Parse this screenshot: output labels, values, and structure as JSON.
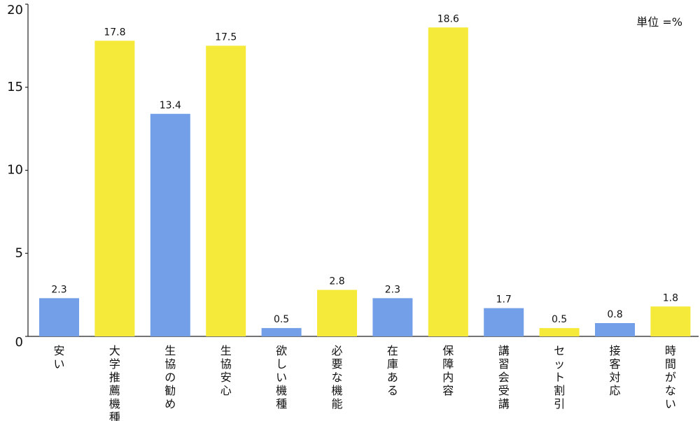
{
  "chart_data": {
    "type": "bar",
    "categories": [
      "安い",
      "大学推薦機種",
      "生協の勧め",
      "生協安心",
      "欲しい機種",
      "必要な機能",
      "在庫ある",
      "保障内容",
      "講習会受講",
      "セット割引",
      "接客対応",
      "時間がない"
    ],
    "values": [
      2.3,
      17.8,
      13.4,
      17.5,
      0.5,
      2.8,
      2.3,
      18.6,
      1.7,
      0.5,
      0.8,
      1.8
    ],
    "data_labels": [
      "2.3",
      "17.8",
      "13.4",
      "17.5",
      "0.5",
      "2.8",
      "2.3",
      "18.6",
      "1.7",
      "0.5",
      "0.8",
      "1.8"
    ],
    "yticks": [
      "0",
      "5",
      "10",
      "15",
      "20"
    ],
    "ylim": [
      0,
      20
    ],
    "unit_note": "単位 =%",
    "grid": false,
    "colors": {
      "blue": "#739fe8",
      "yellow": "#f5e93a",
      "axis": "#222222"
    },
    "bar_colors": [
      "blue",
      "yellow",
      "blue",
      "yellow",
      "blue",
      "yellow",
      "blue",
      "yellow",
      "blue",
      "yellow",
      "blue",
      "yellow"
    ]
  }
}
